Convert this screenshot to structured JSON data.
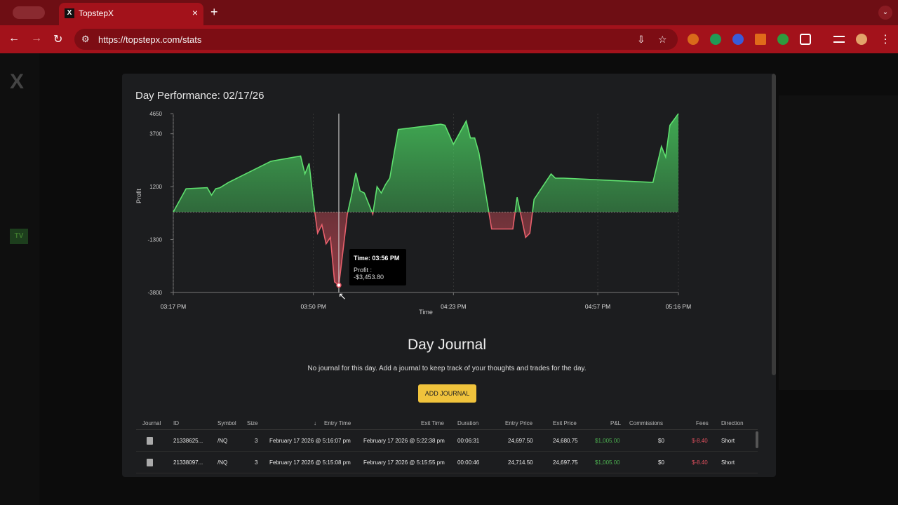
{
  "browser": {
    "tab_title": "TopstepX",
    "tab_favicon": "X",
    "url": "https://topstepx.com/stats"
  },
  "page": {
    "logo": "X",
    "tv_label": "TV"
  },
  "modal": {
    "title": "Day Performance: 02/17/26"
  },
  "chart_data": {
    "type": "area",
    "xlabel": "Time",
    "ylabel": "Profit",
    "x_ticks": [
      "03:17 PM",
      "03:50 PM",
      "04:23 PM",
      "04:57 PM",
      "05:16 PM"
    ],
    "y_ticks": [
      4650,
      3700,
      1200,
      -1300,
      -3800
    ],
    "ylim": [
      -3800,
      4650
    ],
    "baseline": 0,
    "grid": true,
    "colors": {
      "positive": "#4cd964",
      "negative": "#e0505e"
    },
    "x": [
      "03:17 PM",
      "03:20 PM",
      "03:25 PM",
      "03:26 PM",
      "03:27 PM",
      "03:28 PM",
      "03:30 PM",
      "03:40 PM",
      "03:47 PM",
      "03:48 PM",
      "03:49 PM",
      "03:50 PM",
      "03:51 PM",
      "03:52 PM",
      "03:53 PM",
      "03:54 PM",
      "03:55 PM",
      "03:56 PM",
      "03:57 PM",
      "03:58 PM",
      "03:59 PM",
      "04:00 PM",
      "04:01 PM",
      "04:02 PM",
      "04:04 PM",
      "04:05 PM",
      "04:06 PM",
      "04:07 PM",
      "04:08 PM",
      "04:10 PM",
      "04:20 PM",
      "04:21 PM",
      "04:23 PM",
      "04:26 PM",
      "04:27 PM",
      "04:28 PM",
      "04:29 PM",
      "04:32 PM",
      "04:33 PM",
      "04:37 PM",
      "04:38 PM",
      "04:40 PM",
      "04:41 PM",
      "04:42 PM",
      "04:43 PM",
      "04:46 PM",
      "04:47 PM",
      "04:49 PM",
      "05:10 PM",
      "05:12 PM",
      "05:13 PM",
      "05:14 PM",
      "05:16 PM"
    ],
    "values": [
      0,
      1100,
      1150,
      800,
      1100,
      1150,
      1400,
      2400,
      2650,
      1800,
      2300,
      500,
      -1000,
      -600,
      -1500,
      -1200,
      -3300,
      -3454,
      -1800,
      -100,
      800,
      1850,
      1000,
      900,
      -100,
      1200,
      900,
      1300,
      1600,
      3900,
      4150,
      4100,
      3200,
      4300,
      3500,
      3500,
      2800,
      -800,
      -800,
      -800,
      700,
      -1200,
      -1000,
      600,
      900,
      1800,
      1600,
      1600,
      1400,
      3100,
      2600,
      4100,
      4650
    ],
    "tooltip": {
      "time_label": "Time: 03:56 PM",
      "profit_label": "Profit : -$3,453.80",
      "x": "03:56 PM",
      "value": -3453.8
    }
  },
  "journal": {
    "title": "Day Journal",
    "empty_text": "No journal for this day. Add a journal to keep track of your thoughts and trades for the day.",
    "add_button": "ADD JOURNAL"
  },
  "table": {
    "headers": {
      "journal": "Journal",
      "id": "ID",
      "symbol": "Symbol",
      "size": "Size",
      "entry_time": "Entry Time",
      "exit_time": "Exit Time",
      "duration": "Duration",
      "entry_price": "Entry Price",
      "exit_price": "Exit Price",
      "pnl": "P&L",
      "commissions": "Commissions",
      "fees": "Fees",
      "direction": "Direction"
    },
    "sort_indicator": "↓",
    "rows": [
      {
        "id": "21338625...",
        "symbol": "/NQ",
        "size": "3",
        "entry_time": "February 17 2026 @ 5:16:07 pm",
        "exit_time": "February 17 2026 @ 5:22:38 pm",
        "duration": "00:06:31",
        "entry_price": "24,697.50",
        "exit_price": "24,680.75",
        "pnl": "$1,005.00",
        "commissions": "$0",
        "fees": "$-8.40",
        "direction": "Short"
      },
      {
        "id": "21338097...",
        "symbol": "/NQ",
        "size": "3",
        "entry_time": "February 17 2026 @ 5:15:08 pm",
        "exit_time": "February 17 2026 @ 5:15:55 pm",
        "duration": "00:00:46",
        "entry_price": "24,714.50",
        "exit_price": "24,697.75",
        "pnl": "$1,005.00",
        "commissions": "$0",
        "fees": "$-8.40",
        "direction": "Short"
      }
    ]
  },
  "icons": {
    "back": "←",
    "forward": "→",
    "reload": "↻",
    "site_info": "⚙",
    "install": "⇩",
    "star": "☆",
    "menu": "⋮",
    "new_tab": "+",
    "close": "×",
    "tab_menu": "⌄"
  }
}
